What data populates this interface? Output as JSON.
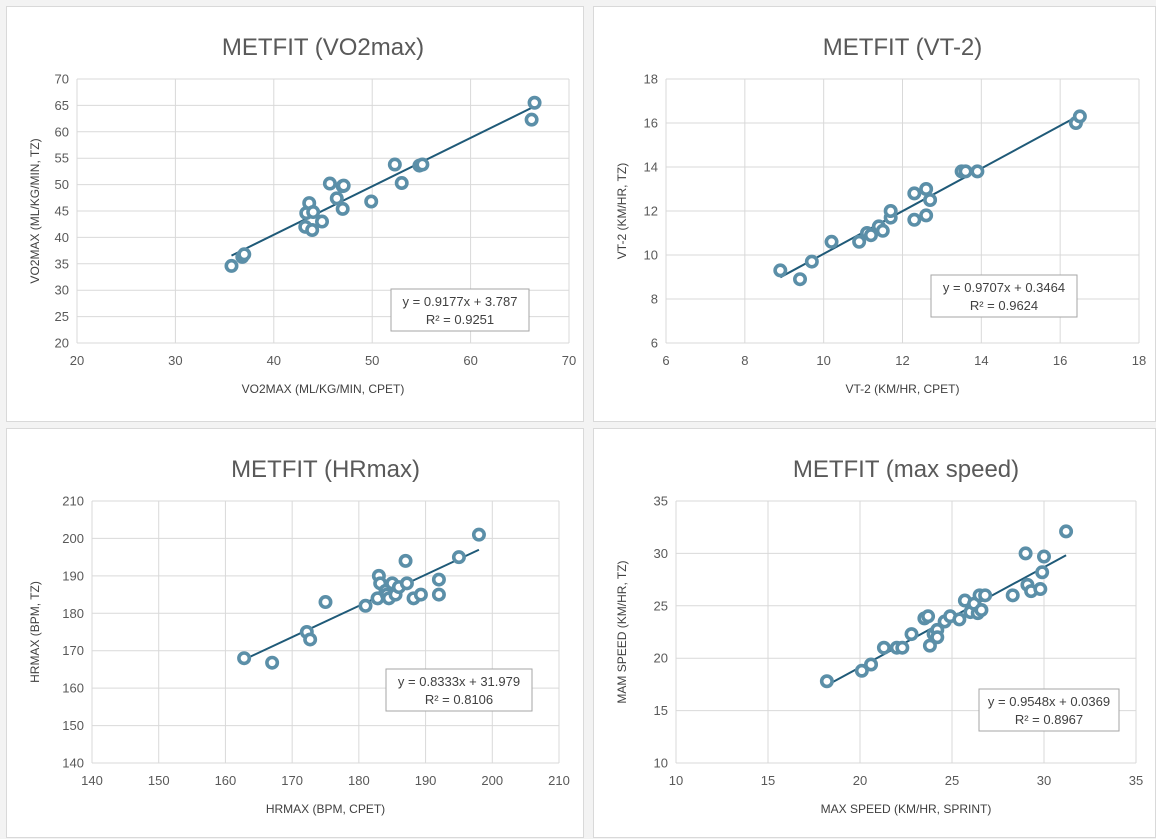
{
  "colors": {
    "point": "#5b8fa8",
    "trend": "#1f5a78",
    "grid": "#d9d9d9",
    "panel_border": "#d9d9d9"
  },
  "chart_data": [
    {
      "type": "scatter",
      "title": "METFIT (VO2max)",
      "xlabel": "VO2MAX (ML/KG/MIN, CPET)",
      "ylabel": "VO2MAX (ML/KG/MIN, TZ)",
      "xlim": [
        20,
        70
      ],
      "ylim": [
        20,
        70
      ],
      "xticks": [
        20,
        30,
        40,
        50,
        60,
        70
      ],
      "yticks": [
        20,
        25,
        30,
        35,
        40,
        45,
        50,
        55,
        60,
        65,
        70
      ],
      "grid": true,
      "points": [
        [
          35.7,
          34.6
        ],
        [
          36.8,
          36.3
        ],
        [
          37.0,
          36.8
        ],
        [
          43.2,
          42.0
        ],
        [
          43.3,
          44.6
        ],
        [
          43.6,
          46.5
        ],
        [
          43.9,
          41.4
        ],
        [
          44.0,
          44.8
        ],
        [
          44.9,
          43.0
        ],
        [
          45.7,
          50.2
        ],
        [
          46.4,
          47.4
        ],
        [
          47.0,
          49.7
        ],
        [
          47.0,
          45.4
        ],
        [
          47.1,
          49.8
        ],
        [
          49.9,
          46.8
        ],
        [
          52.3,
          53.8
        ],
        [
          53.0,
          50.3
        ],
        [
          54.8,
          53.6
        ],
        [
          55.1,
          53.8
        ],
        [
          66.2,
          62.3
        ],
        [
          66.5,
          65.5
        ]
      ],
      "trendline": {
        "slope": 0.9177,
        "intercept": 3.787,
        "x_range": [
          35.7,
          66.5
        ]
      },
      "equation": "y = 0.9177x + 3.787",
      "r_squared_label": "R² = 0.9251"
    },
    {
      "type": "scatter",
      "title": "METFIT (VT-2)",
      "xlabel": "VT-2 (KM/HR, CPET)",
      "ylabel": "VT-2 (KM/HR, TZ)",
      "xlim": [
        6,
        18
      ],
      "ylim": [
        6,
        18
      ],
      "xticks": [
        6,
        8,
        10,
        12,
        14,
        16,
        18
      ],
      "yticks": [
        6,
        8,
        10,
        12,
        14,
        16,
        18
      ],
      "grid": true,
      "points": [
        [
          8.9,
          9.3
        ],
        [
          9.4,
          8.9
        ],
        [
          9.7,
          9.7
        ],
        [
          10.2,
          10.6
        ],
        [
          10.9,
          10.6
        ],
        [
          11.1,
          11.0
        ],
        [
          11.2,
          10.9
        ],
        [
          11.4,
          11.3
        ],
        [
          11.5,
          11.1
        ],
        [
          11.7,
          11.7
        ],
        [
          11.7,
          12.0
        ],
        [
          12.3,
          11.6
        ],
        [
          12.3,
          12.8
        ],
        [
          12.6,
          13.0
        ],
        [
          12.6,
          11.8
        ],
        [
          12.7,
          12.5
        ],
        [
          13.5,
          13.8
        ],
        [
          13.6,
          13.8
        ],
        [
          13.9,
          13.8
        ],
        [
          16.4,
          16.0
        ],
        [
          16.5,
          16.3
        ]
      ],
      "trendline": {
        "slope": 0.9707,
        "intercept": 0.3464,
        "x_range": [
          8.9,
          16.5
        ]
      },
      "equation": "y = 0.9707x + 0.3464",
      "r_squared_label": "R² = 0.9624"
    },
    {
      "type": "scatter",
      "title": "METFIT (HRmax)",
      "xlabel": "HRMAX (BPM, CPET)",
      "ylabel": "HRMAX (BPM, TZ)",
      "xlim": [
        140,
        210
      ],
      "ylim": [
        140,
        210
      ],
      "xticks": [
        140,
        150,
        160,
        170,
        180,
        190,
        200,
        210
      ],
      "yticks": [
        140,
        150,
        160,
        170,
        180,
        190,
        200,
        210
      ],
      "grid": true,
      "points": [
        [
          162.8,
          168.0
        ],
        [
          167.0,
          166.8
        ],
        [
          172.2,
          175.0
        ],
        [
          172.7,
          173.0
        ],
        [
          175.0,
          183.0
        ],
        [
          181.0,
          182.0
        ],
        [
          182.8,
          184.0
        ],
        [
          183.0,
          190.0
        ],
        [
          183.2,
          188.0
        ],
        [
          184.0,
          186.0
        ],
        [
          184.2,
          185.0
        ],
        [
          184.5,
          184.0
        ],
        [
          185.0,
          188.0
        ],
        [
          185.5,
          185.0
        ],
        [
          186.0,
          187.0
        ],
        [
          187.0,
          194.0
        ],
        [
          187.2,
          188.0
        ],
        [
          188.2,
          184.0
        ],
        [
          189.3,
          185.0
        ],
        [
          192.0,
          189.0
        ],
        [
          192.0,
          185.0
        ],
        [
          195.0,
          195.0
        ],
        [
          198.0,
          201.0
        ]
      ],
      "trendline": {
        "slope": 0.8333,
        "intercept": 31.979,
        "x_range": [
          162.8,
          198.0
        ]
      },
      "equation": "y = 0.8333x + 31.979",
      "r_squared_label": "R² = 0.8106"
    },
    {
      "type": "scatter",
      "title": "METFIT (max speed)",
      "xlabel": "MAX SPEED (KM/HR, SPRINT)",
      "ylabel": "MAM SPEED (KM/HR, TZ)",
      "xlim": [
        10,
        35
      ],
      "ylim": [
        10,
        35
      ],
      "xticks": [
        10,
        15,
        20,
        25,
        30,
        35
      ],
      "yticks": [
        10,
        15,
        20,
        25,
        30,
        35
      ],
      "grid": true,
      "points": [
        [
          18.2,
          17.8
        ],
        [
          20.1,
          18.8
        ],
        [
          20.6,
          19.4
        ],
        [
          21.3,
          21.0
        ],
        [
          22.0,
          21.0
        ],
        [
          22.3,
          21.0
        ],
        [
          22.8,
          22.3
        ],
        [
          23.5,
          23.8
        ],
        [
          23.7,
          24.0
        ],
        [
          23.8,
          21.2
        ],
        [
          24.0,
          22.3
        ],
        [
          24.2,
          22.7
        ],
        [
          24.2,
          22.0
        ],
        [
          24.6,
          23.5
        ],
        [
          24.9,
          24.0
        ],
        [
          25.4,
          23.7
        ],
        [
          25.7,
          25.5
        ],
        [
          26.0,
          24.4
        ],
        [
          26.2,
          25.2
        ],
        [
          26.4,
          24.3
        ],
        [
          26.5,
          26.0
        ],
        [
          26.6,
          24.6
        ],
        [
          26.8,
          26.0
        ],
        [
          28.3,
          26.0
        ],
        [
          29.0,
          30.0
        ],
        [
          29.1,
          27.0
        ],
        [
          29.3,
          26.4
        ],
        [
          29.8,
          26.6
        ],
        [
          29.9,
          28.2
        ],
        [
          30.0,
          29.7
        ],
        [
          31.2,
          32.1
        ]
      ],
      "trendline": {
        "slope": 0.9548,
        "intercept": 0.0369,
        "x_range": [
          18.2,
          31.2
        ]
      },
      "equation": "y = 0.9548x + 0.0369",
      "r_squared_label": "R² = 0.8967"
    }
  ]
}
